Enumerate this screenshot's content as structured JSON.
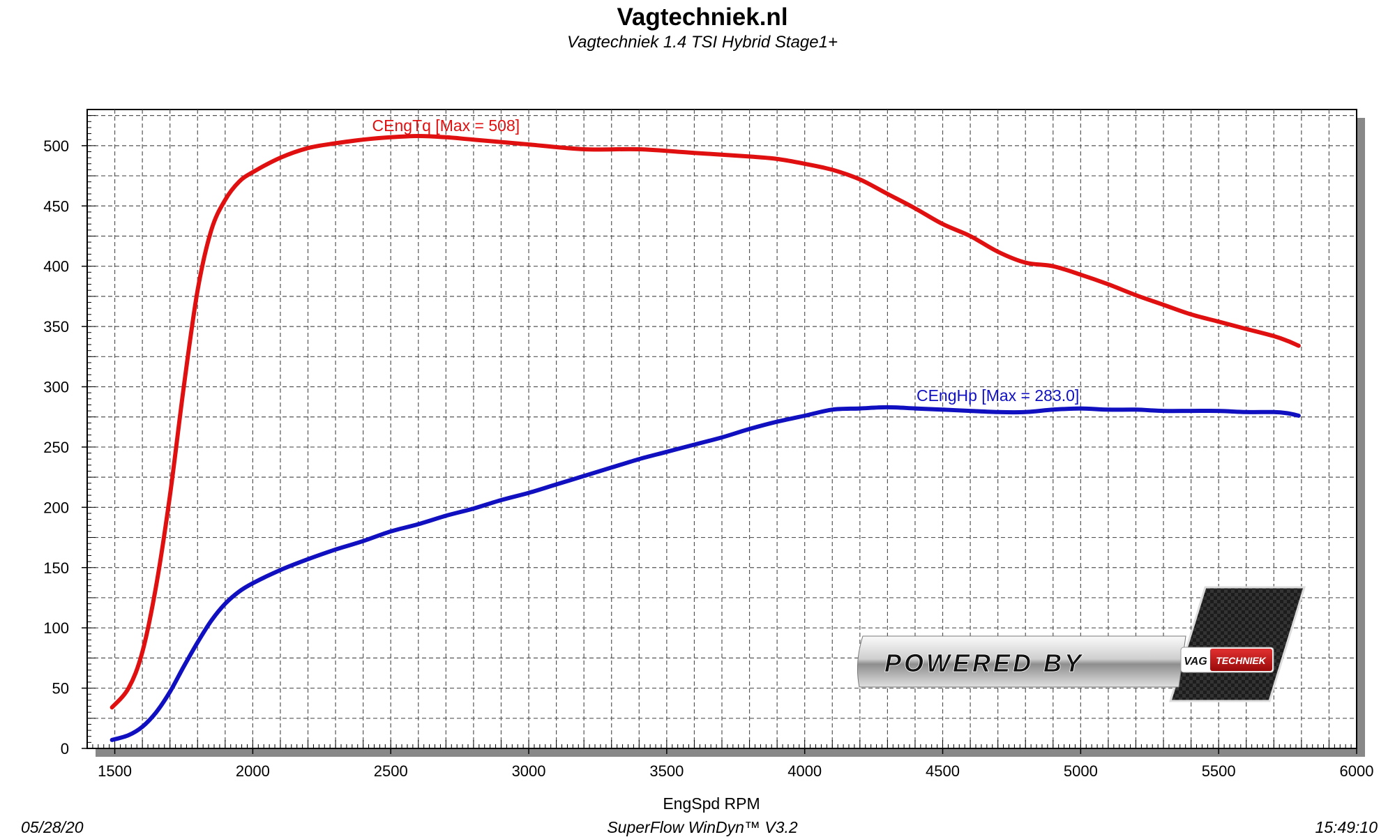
{
  "colors": {
    "torque": "#e01010",
    "power": "#1010c0",
    "grid": "#555555",
    "frame": "#000000"
  },
  "branding": {
    "logo_text": "POWERED BY",
    "badge_left": "VAG",
    "badge_right": "TECHNIEK"
  },
  "footer": {
    "date": "05/28/20",
    "software": "SuperFlow WinDyn™  V3.2",
    "time": "15:49:10"
  },
  "chart_data": {
    "type": "line",
    "title": "Vagtechniek.nl",
    "subtitle": "Vagtechniek 1.4 TSI Hybrid Stage1+",
    "xlabel": "EngSpd RPM",
    "ylabel": "",
    "xlim": [
      1400,
      6000
    ],
    "ylim": [
      0,
      530
    ],
    "xticks": [
      1500,
      2000,
      2500,
      3000,
      3500,
      4000,
      4500,
      5000,
      5500,
      6000
    ],
    "yticks": [
      0,
      50,
      100,
      150,
      200,
      250,
      300,
      350,
      400,
      450,
      500
    ],
    "grid": true,
    "series": [
      {
        "name": "CEngTq [Max = 508]",
        "color": "#e01010",
        "label_at": [
          2700,
          512
        ],
        "points": [
          [
            1490,
            34
          ],
          [
            1550,
            50
          ],
          [
            1600,
            80
          ],
          [
            1650,
            135
          ],
          [
            1700,
            210
          ],
          [
            1750,
            300
          ],
          [
            1800,
            380
          ],
          [
            1850,
            430
          ],
          [
            1900,
            455
          ],
          [
            1950,
            470
          ],
          [
            2000,
            478
          ],
          [
            2100,
            490
          ],
          [
            2200,
            498
          ],
          [
            2300,
            502
          ],
          [
            2400,
            505
          ],
          [
            2500,
            507
          ],
          [
            2600,
            508
          ],
          [
            2700,
            507
          ],
          [
            2800,
            505
          ],
          [
            3000,
            501
          ],
          [
            3200,
            497
          ],
          [
            3400,
            497
          ],
          [
            3600,
            494
          ],
          [
            3800,
            491
          ],
          [
            3900,
            489
          ],
          [
            4000,
            485
          ],
          [
            4100,
            480
          ],
          [
            4200,
            472
          ],
          [
            4300,
            460
          ],
          [
            4400,
            448
          ],
          [
            4500,
            435
          ],
          [
            4600,
            425
          ],
          [
            4700,
            412
          ],
          [
            4800,
            403
          ],
          [
            4900,
            400
          ],
          [
            5000,
            393
          ],
          [
            5100,
            385
          ],
          [
            5200,
            376
          ],
          [
            5300,
            368
          ],
          [
            5400,
            360
          ],
          [
            5500,
            354
          ],
          [
            5600,
            348
          ],
          [
            5700,
            342
          ],
          [
            5750,
            338
          ],
          [
            5790,
            334
          ]
        ]
      },
      {
        "name": "CEngHp [Max = 283.0]",
        "color": "#1010c0",
        "label_at": [
          4700,
          288
        ],
        "points": [
          [
            1490,
            7
          ],
          [
            1550,
            11
          ],
          [
            1600,
            18
          ],
          [
            1650,
            30
          ],
          [
            1700,
            47
          ],
          [
            1750,
            68
          ],
          [
            1800,
            88
          ],
          [
            1850,
            106
          ],
          [
            1900,
            120
          ],
          [
            1950,
            130
          ],
          [
            2000,
            137
          ],
          [
            2100,
            148
          ],
          [
            2200,
            157
          ],
          [
            2300,
            165
          ],
          [
            2400,
            172
          ],
          [
            2500,
            180
          ],
          [
            2600,
            186
          ],
          [
            2700,
            193
          ],
          [
            2800,
            199
          ],
          [
            2900,
            206
          ],
          [
            3000,
            212
          ],
          [
            3100,
            219
          ],
          [
            3200,
            226
          ],
          [
            3300,
            233
          ],
          [
            3400,
            240
          ],
          [
            3500,
            246
          ],
          [
            3600,
            252
          ],
          [
            3700,
            258
          ],
          [
            3800,
            265
          ],
          [
            3900,
            271
          ],
          [
            4000,
            276
          ],
          [
            4100,
            281
          ],
          [
            4200,
            282
          ],
          [
            4300,
            283
          ],
          [
            4400,
            282
          ],
          [
            4500,
            281
          ],
          [
            4600,
            280
          ],
          [
            4700,
            279
          ],
          [
            4800,
            279
          ],
          [
            4900,
            281
          ],
          [
            5000,
            282
          ],
          [
            5100,
            281
          ],
          [
            5200,
            281
          ],
          [
            5300,
            280
          ],
          [
            5400,
            280
          ],
          [
            5500,
            280
          ],
          [
            5600,
            279
          ],
          [
            5700,
            279
          ],
          [
            5750,
            278
          ],
          [
            5790,
            276
          ]
        ]
      }
    ]
  }
}
